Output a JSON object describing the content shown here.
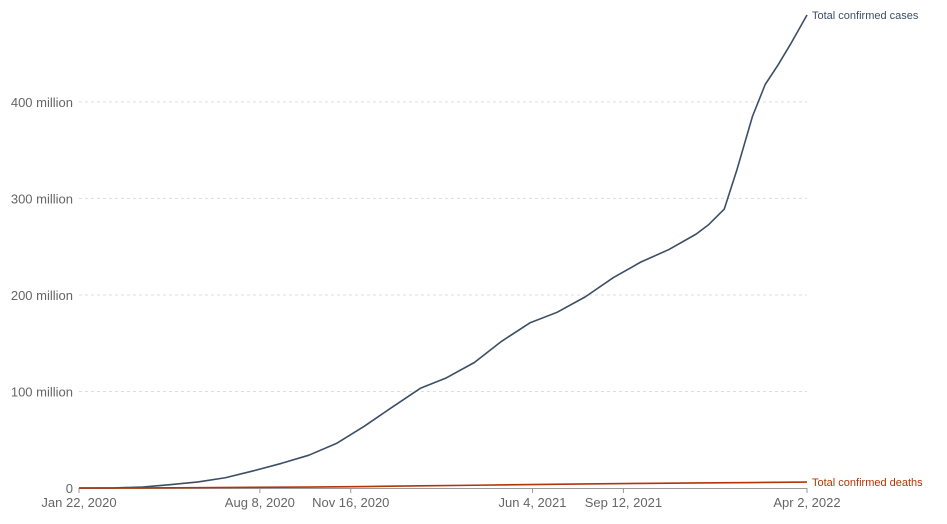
{
  "chart_data": {
    "type": "line",
    "title": "",
    "xlabel": "",
    "ylabel": "",
    "x_range": [
      "2020-01-22",
      "2022-04-02"
    ],
    "ylim": [
      0,
      490000000
    ],
    "grid": "horizontal dashed",
    "legend": "inline labels at line ends",
    "y_ticks": [
      {
        "value": 0,
        "label": "0"
      },
      {
        "value": 100000000,
        "label": "100 million"
      },
      {
        "value": 200000000,
        "label": "200 million"
      },
      {
        "value": 300000000,
        "label": "300 million"
      },
      {
        "value": 400000000,
        "label": "400 million"
      }
    ],
    "x_ticks": [
      {
        "date": "2020-01-22",
        "label": "Jan 22, 2020"
      },
      {
        "date": "2020-08-08",
        "label": "Aug 8, 2020"
      },
      {
        "date": "2020-11-16",
        "label": "Nov 16, 2020"
      },
      {
        "date": "2021-06-04",
        "label": "Jun 4, 2021"
      },
      {
        "date": "2021-09-12",
        "label": "Sep 12, 2021"
      },
      {
        "date": "2022-04-02",
        "label": "Apr 2, 2022"
      }
    ],
    "series": [
      {
        "name": "Total confirmed cases",
        "color": "#3c4e66",
        "points": [
          [
            "2020-01-22",
            0
          ],
          [
            "2020-03-01",
            90000
          ],
          [
            "2020-04-01",
            1000000
          ],
          [
            "2020-05-01",
            3400000
          ],
          [
            "2020-06-01",
            6300000
          ],
          [
            "2020-07-01",
            10600000
          ],
          [
            "2020-08-01",
            17800000
          ],
          [
            "2020-09-01",
            25600000
          ],
          [
            "2020-10-01",
            34000000
          ],
          [
            "2020-11-01",
            46500000
          ],
          [
            "2020-12-01",
            64000000
          ],
          [
            "2021-01-01",
            84000000
          ],
          [
            "2021-02-01",
            103500000
          ],
          [
            "2021-03-01",
            114000000
          ],
          [
            "2021-04-01",
            130000000
          ],
          [
            "2021-05-01",
            152000000
          ],
          [
            "2021-06-01",
            171000000
          ],
          [
            "2021-07-01",
            182000000
          ],
          [
            "2021-08-01",
            198000000
          ],
          [
            "2021-09-01",
            218000000
          ],
          [
            "2021-10-01",
            234000000
          ],
          [
            "2021-11-01",
            247000000
          ],
          [
            "2021-12-01",
            263000000
          ],
          [
            "2021-12-15",
            273000000
          ],
          [
            "2022-01-01",
            289000000
          ],
          [
            "2022-01-15",
            330000000
          ],
          [
            "2022-02-01",
            385000000
          ],
          [
            "2022-02-15",
            418000000
          ],
          [
            "2022-03-01",
            438000000
          ],
          [
            "2022-03-15",
            460000000
          ],
          [
            "2022-04-02",
            490000000
          ]
        ]
      },
      {
        "name": "Total confirmed deaths",
        "color": "#b13507",
        "points": [
          [
            "2020-01-22",
            0
          ],
          [
            "2020-04-01",
            50000
          ],
          [
            "2020-06-01",
            380000
          ],
          [
            "2020-08-01",
            690000
          ],
          [
            "2020-10-01",
            1010000
          ],
          [
            "2020-12-01",
            1470000
          ],
          [
            "2021-02-01",
            2270000
          ],
          [
            "2021-04-01",
            2840000
          ],
          [
            "2021-06-01",
            3570000
          ],
          [
            "2021-08-01",
            4220000
          ],
          [
            "2021-10-01",
            4780000
          ],
          [
            "2021-12-01",
            5220000
          ],
          [
            "2022-02-01",
            5680000
          ],
          [
            "2022-04-02",
            6160000
          ]
        ]
      }
    ]
  }
}
